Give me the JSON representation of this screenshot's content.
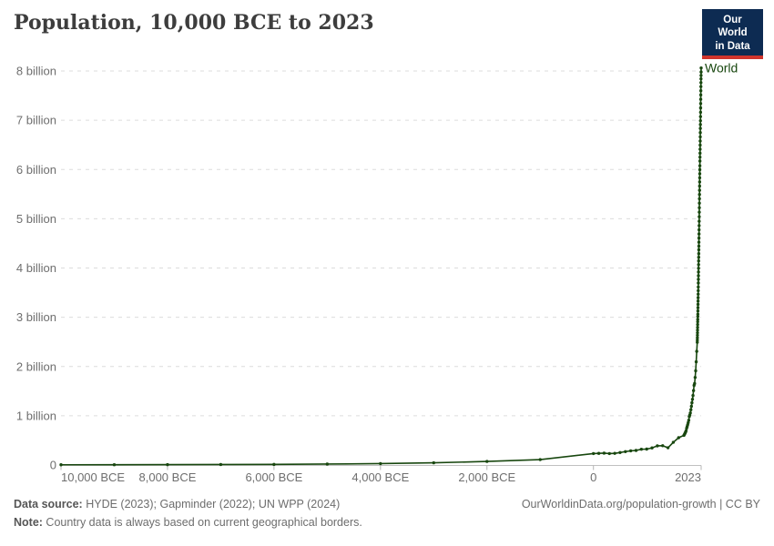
{
  "header": {
    "title": "Population, 10,000 BCE to 2023"
  },
  "logo": {
    "line1": "Our World",
    "line2": "in Data",
    "bg_color": "#0d2b52",
    "accent_color": "#d0342c"
  },
  "chart_data": {
    "type": "line",
    "title": "Population, 10,000 BCE to 2023",
    "entity": "World",
    "unit": "billion people",
    "grid": "dashed-horizontal",
    "legend_position": "end-of-line",
    "line_color": "#18470f",
    "x_range": [
      -10000,
      2023
    ],
    "ylim_billions": [
      0,
      8
    ],
    "y_ticks": [
      {
        "value": 0,
        "label": "0"
      },
      {
        "value": 1,
        "label": "1 billion"
      },
      {
        "value": 2,
        "label": "2 billion"
      },
      {
        "value": 3,
        "label": "3 billion"
      },
      {
        "value": 4,
        "label": "4 billion"
      },
      {
        "value": 5,
        "label": "5 billion"
      },
      {
        "value": 6,
        "label": "6 billion"
      },
      {
        "value": 7,
        "label": "7 billion"
      },
      {
        "value": 8,
        "label": "8 billion"
      }
    ],
    "x_ticks": [
      {
        "year": -10000,
        "label": "10,000 BCE",
        "anchor": "start"
      },
      {
        "year": -8000,
        "label": "8,000 BCE",
        "anchor": "middle"
      },
      {
        "year": -6000,
        "label": "6,000 BCE",
        "anchor": "middle"
      },
      {
        "year": -4000,
        "label": "4,000 BCE",
        "anchor": "middle"
      },
      {
        "year": -2000,
        "label": "2,000 BCE",
        "anchor": "middle"
      },
      {
        "year": 0,
        "label": "0",
        "anchor": "middle"
      },
      {
        "year": 2023,
        "label": "2023",
        "anchor": "end"
      }
    ],
    "series": [
      {
        "name": "World",
        "points_format": [
          "year",
          "population_billions"
        ],
        "points": [
          [
            -10000,
            0.0044
          ],
          [
            -9000,
            0.0057
          ],
          [
            -8000,
            0.0074
          ],
          [
            -7000,
            0.0096
          ],
          [
            -6000,
            0.0125
          ],
          [
            -5000,
            0.0188
          ],
          [
            -4000,
            0.0282
          ],
          [
            -3000,
            0.0443
          ],
          [
            -2000,
            0.0723
          ],
          [
            -1000,
            0.1105
          ],
          [
            0,
            0.2323
          ],
          [
            100,
            0.2364
          ],
          [
            200,
            0.2411
          ],
          [
            300,
            0.2322
          ],
          [
            400,
            0.2373
          ],
          [
            500,
            0.2535
          ],
          [
            600,
            0.2722
          ],
          [
            700,
            0.2879
          ],
          [
            800,
            0.2954
          ],
          [
            900,
            0.3201
          ],
          [
            1000,
            0.3234
          ],
          [
            1100,
            0.3468
          ],
          [
            1200,
            0.3891
          ],
          [
            1300,
            0.3921
          ],
          [
            1400,
            0.3502
          ],
          [
            1500,
            0.4614
          ],
          [
            1600,
            0.5544
          ],
          [
            1700,
            0.6034
          ],
          [
            1710,
            0.6232
          ],
          [
            1720,
            0.6452
          ],
          [
            1730,
            0.6674
          ],
          [
            1740,
            0.6942
          ],
          [
            1750,
            0.7456
          ],
          [
            1760,
            0.7811
          ],
          [
            1770,
            0.8189
          ],
          [
            1780,
            0.8611
          ],
          [
            1790,
            0.9082
          ],
          [
            1800,
            0.9846
          ],
          [
            1810,
            1.0142
          ],
          [
            1820,
            1.0571
          ],
          [
            1830,
            1.1225
          ],
          [
            1840,
            1.1921
          ],
          [
            1850,
            1.2632
          ],
          [
            1860,
            1.3341
          ],
          [
            1870,
            1.4112
          ],
          [
            1880,
            1.5113
          ],
          [
            1890,
            1.6172
          ],
          [
            1900,
            1.6541
          ],
          [
            1910,
            1.7773
          ],
          [
            1920,
            1.9122
          ],
          [
            1930,
            2.0951
          ],
          [
            1940,
            2.3073
          ],
          [
            1950,
            2.493
          ],
          [
            1951,
            2.536
          ],
          [
            1952,
            2.584
          ],
          [
            1953,
            2.634
          ],
          [
            1954,
            2.685
          ],
          [
            1955,
            2.74
          ],
          [
            1956,
            2.795
          ],
          [
            1957,
            2.853
          ],
          [
            1958,
            2.909
          ],
          [
            1959,
            2.956
          ],
          [
            1960,
            3.015
          ],
          [
            1961,
            3.062
          ],
          [
            1962,
            3.127
          ],
          [
            1963,
            3.195
          ],
          [
            1964,
            3.261
          ],
          [
            1965,
            3.328
          ],
          [
            1966,
            3.398
          ],
          [
            1967,
            3.468
          ],
          [
            1968,
            3.54
          ],
          [
            1969,
            3.614
          ],
          [
            1970,
            3.695
          ],
          [
            1971,
            3.769
          ],
          [
            1972,
            3.844
          ],
          [
            1973,
            3.92
          ],
          [
            1974,
            3.995
          ],
          [
            1975,
            4.069
          ],
          [
            1976,
            4.143
          ],
          [
            1977,
            4.217
          ],
          [
            1978,
            4.292
          ],
          [
            1979,
            4.37
          ],
          [
            1980,
            4.444
          ],
          [
            1981,
            4.524
          ],
          [
            1982,
            4.608
          ],
          [
            1983,
            4.691
          ],
          [
            1984,
            4.775
          ],
          [
            1985,
            4.861
          ],
          [
            1986,
            4.949
          ],
          [
            1987,
            5.041
          ],
          [
            1988,
            5.133
          ],
          [
            1989,
            5.223
          ],
          [
            1990,
            5.316
          ],
          [
            1991,
            5.406
          ],
          [
            1992,
            5.492
          ],
          [
            1993,
            5.578
          ],
          [
            1994,
            5.663
          ],
          [
            1995,
            5.748
          ],
          [
            1996,
            5.831
          ],
          [
            1997,
            5.914
          ],
          [
            1998,
            5.996
          ],
          [
            1999,
            6.076
          ],
          [
            2000,
            6.171
          ],
          [
            2001,
            6.251
          ],
          [
            2002,
            6.331
          ],
          [
            2003,
            6.412
          ],
          [
            2004,
            6.495
          ],
          [
            2005,
            6.578
          ],
          [
            2006,
            6.662
          ],
          [
            2007,
            6.748
          ],
          [
            2008,
            6.834
          ],
          [
            2009,
            6.913
          ],
          [
            2010,
            6.99
          ],
          [
            2011,
            7.073
          ],
          [
            2012,
            7.161
          ],
          [
            2013,
            7.25
          ],
          [
            2014,
            7.339
          ],
          [
            2015,
            7.426
          ],
          [
            2016,
            7.513
          ],
          [
            2017,
            7.599
          ],
          [
            2018,
            7.683
          ],
          [
            2019,
            7.764
          ],
          [
            2020,
            7.84
          ],
          [
            2021,
            7.909
          ],
          [
            2022,
            7.98
          ],
          [
            2023,
            8.062
          ]
        ]
      }
    ]
  },
  "footer": {
    "source_label": "Data source:",
    "source_text": " HYDE (2023); Gapminder (2022); UN WPP (2024)",
    "note_label": "Note:",
    "note_text": " Country data is always based on current geographical borders.",
    "link_text": "OurWorldinData.org/population-growth | CC BY"
  }
}
